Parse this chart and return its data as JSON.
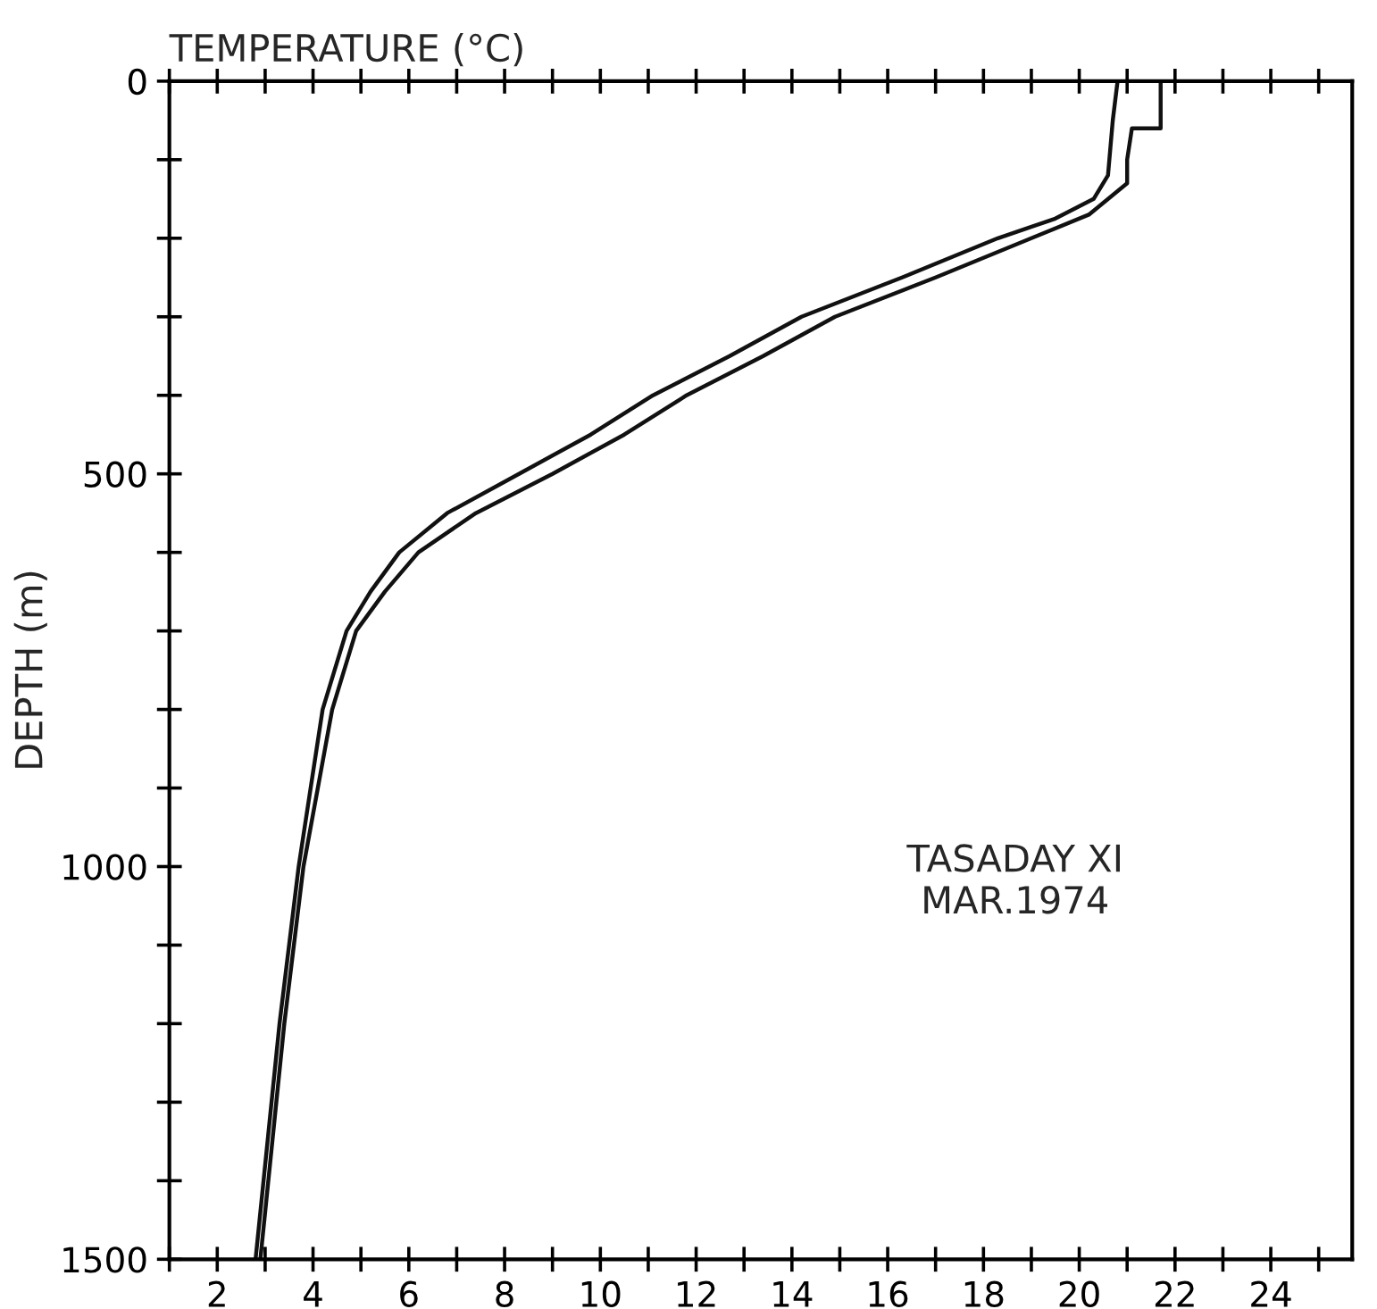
{
  "chart_data": {
    "type": "line",
    "title": "TEMPERATURE (°C)",
    "ylabel": "DEPTH (m)",
    "annotations": [
      "TASADAY XI\nMAR.1974"
    ],
    "xlim": [
      1,
      25.7
    ],
    "xticks": [
      {
        "value": 1,
        "label": null
      },
      2,
      {
        "value": 3,
        "label": null
      },
      4,
      {
        "value": 5,
        "label": null
      },
      6,
      {
        "value": 7,
        "label": null
      },
      8,
      {
        "value": 9,
        "label": null
      },
      10,
      {
        "value": 11,
        "label": null
      },
      12,
      {
        "value": 13,
        "label": null
      },
      14,
      {
        "value": 15,
        "label": null
      },
      16,
      {
        "value": 17,
        "label": null
      },
      18,
      {
        "value": 19,
        "label": null
      },
      20,
      {
        "value": 21,
        "label": null
      },
      22,
      {
        "value": 23,
        "label": null
      },
      24,
      {
        "value": 25,
        "label": null
      }
    ],
    "ylim": [
      1500,
      0
    ],
    "yticks": [
      0,
      {
        "value": 100,
        "label": null
      },
      {
        "value": 200,
        "label": null
      },
      {
        "value": 300,
        "label": null
      },
      {
        "value": 400,
        "label": null
      },
      500,
      {
        "value": 600,
        "label": null
      },
      {
        "value": 700,
        "label": null
      },
      {
        "value": 800,
        "label": null
      },
      {
        "value": 900,
        "label": null
      },
      1000,
      {
        "value": 1100,
        "label": null
      },
      {
        "value": 1200,
        "label": null
      },
      {
        "value": 1300,
        "label": null
      },
      {
        "value": 1400,
        "label": null
      },
      1500
    ],
    "grid": false,
    "legend": false,
    "marker": "none",
    "line_style": "solid",
    "series": [
      {
        "color": "#111111",
        "x": [
          20.8,
          20.7,
          20.6,
          20.3,
          19.5,
          18.3,
          16.3,
          14.2,
          12.7,
          11.1,
          9.8,
          8.3,
          6.8,
          5.8,
          5.2,
          4.7,
          4.2,
          3.7,
          3.3,
          2.8
        ],
        "values": [
          0,
          50,
          120,
          150,
          175,
          200,
          250,
          300,
          350,
          400,
          450,
          500,
          550,
          600,
          650,
          700,
          800,
          1000,
          1200,
          1500
        ]
      },
      {
        "color": "#111111",
        "x": [
          21.7,
          21.7,
          21.1,
          21.0,
          21.0,
          20.2,
          19.0,
          17.0,
          14.9,
          13.4,
          11.8,
          10.5,
          9.0,
          7.4,
          6.2,
          5.5,
          4.9,
          4.4,
          3.8,
          3.4,
          2.9
        ],
        "values": [
          0,
          60,
          60,
          100,
          130,
          170,
          200,
          250,
          300,
          350,
          400,
          450,
          500,
          550,
          600,
          650,
          700,
          800,
          1000,
          1200,
          1500
        ]
      }
    ]
  }
}
